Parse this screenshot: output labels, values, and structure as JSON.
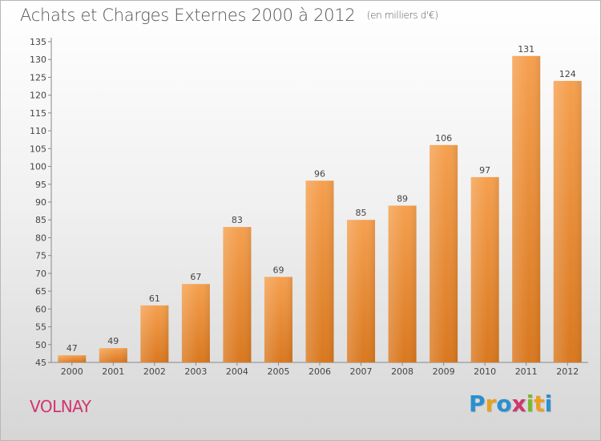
{
  "chart_data": {
    "type": "bar",
    "title": "Achats et Charges Externes 2000 à 2012",
    "subtitle": "(en milliers d'€)",
    "xlabel": "",
    "ylabel": "",
    "categories": [
      "2000",
      "2001",
      "2002",
      "2003",
      "2004",
      "2005",
      "2006",
      "2007",
      "2008",
      "2009",
      "2010",
      "2011",
      "2012"
    ],
    "values": [
      47,
      49,
      61,
      67,
      83,
      69,
      96,
      85,
      89,
      106,
      97,
      131,
      124
    ],
    "ylim": [
      45,
      135
    ],
    "ytick_step": 5,
    "grid": false,
    "bar_color_top": "#f5a04f",
    "bar_color_bottom": "#d9781f"
  },
  "footer": {
    "location": "VOLNAY",
    "brand_letters": [
      "P",
      "r",
      "o",
      "x",
      "i",
      "t",
      "i"
    ],
    "brand_colors": [
      "#2a8fd0",
      "#e8a020",
      "#2a8fd0",
      "#d0366e",
      "#7cb82f",
      "#e8a020",
      "#2a8fd0"
    ]
  }
}
